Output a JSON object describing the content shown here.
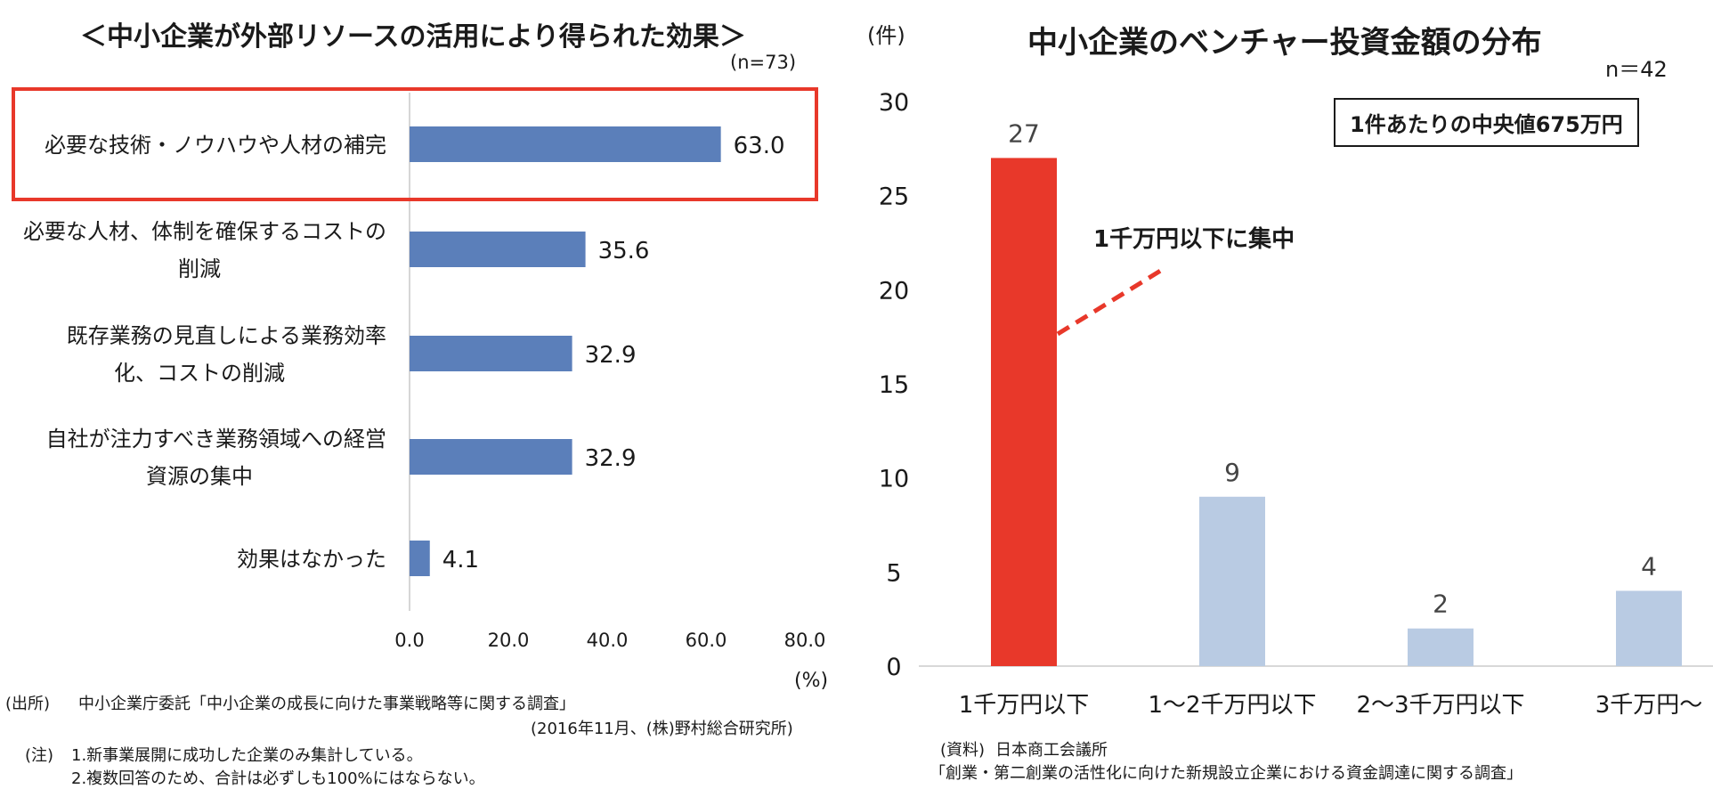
{
  "left": {
    "title": "＜中小企業が外部リソースの活用により得られた効果＞",
    "n_label": "(n=73)",
    "unit_label": "(%)",
    "source_label": "(出所)",
    "source_line1": "中小企業庁委託「中小企業の成長に向けた事業戦略等に関する調査」",
    "source_line2": "(2016年11月、(株)野村総合研究所)",
    "note_label": "(注)",
    "note1": "1.新事業展開に成功した企業のみ集計している。",
    "note2": "2.複数回答のため、合計は必ずしも100%にはならない。"
  },
  "right": {
    "title": "中小企業のベンチャー投資金額の分布",
    "n_label": "n＝42",
    "unit_label": "(件)",
    "median_box": "1件あたりの中央値675万円",
    "annotation": "1千万円以下に集中",
    "source_label": "(資料)",
    "source_line1": "日本商工会議所",
    "source_line2": "「創業・第二創業の活性化に向けた新規設立企業における資金調達に関する調査」"
  },
  "chart_data": [
    {
      "type": "bar",
      "orientation": "horizontal",
      "title": "＜中小企業が外部リソースの活用により得られた効果＞",
      "categories": [
        [
          "必要な技術・ノウハウや人材の補完"
        ],
        [
          "必要な人材、体制を確保するコストの",
          "削減"
        ],
        [
          "既存業務の見直しによる業務効率",
          "化、コストの削減"
        ],
        [
          "自社が注力すべき業務領域への経営",
          "資源の集中"
        ],
        [
          "効果はなかった"
        ]
      ],
      "values": [
        63.0,
        35.6,
        32.9,
        32.9,
        4.1
      ],
      "value_labels": [
        "63.0",
        "35.6",
        "32.9",
        "32.9",
        "4.1"
      ],
      "xticks": [
        "0.0",
        "20.0",
        "40.0",
        "60.0",
        "80.0"
      ],
      "xlim": [
        0,
        80
      ],
      "xlabel": "(%)",
      "highlight_index": 0,
      "colors": {
        "bar": "#5b7fba",
        "highlight_border": "#e8382a"
      }
    },
    {
      "type": "bar",
      "orientation": "vertical",
      "title": "中小企業のベンチャー投資金額の分布",
      "categories": [
        "1千万円以下",
        "1～2千万円以下",
        "2～3千万円以下",
        "3千万円～"
      ],
      "values": [
        27,
        9,
        2,
        4
      ],
      "value_labels": [
        "27",
        "9",
        "2",
        "4"
      ],
      "yticks": [
        "0",
        "5",
        "10",
        "15",
        "20",
        "25",
        "30"
      ],
      "ylim": [
        0,
        30
      ],
      "ylabel": "(件)",
      "highlight_index": 0,
      "colors": {
        "highlight": "#e8382a",
        "bar": "#b9cbe3",
        "annotation_line": "#e8382a"
      }
    }
  ]
}
